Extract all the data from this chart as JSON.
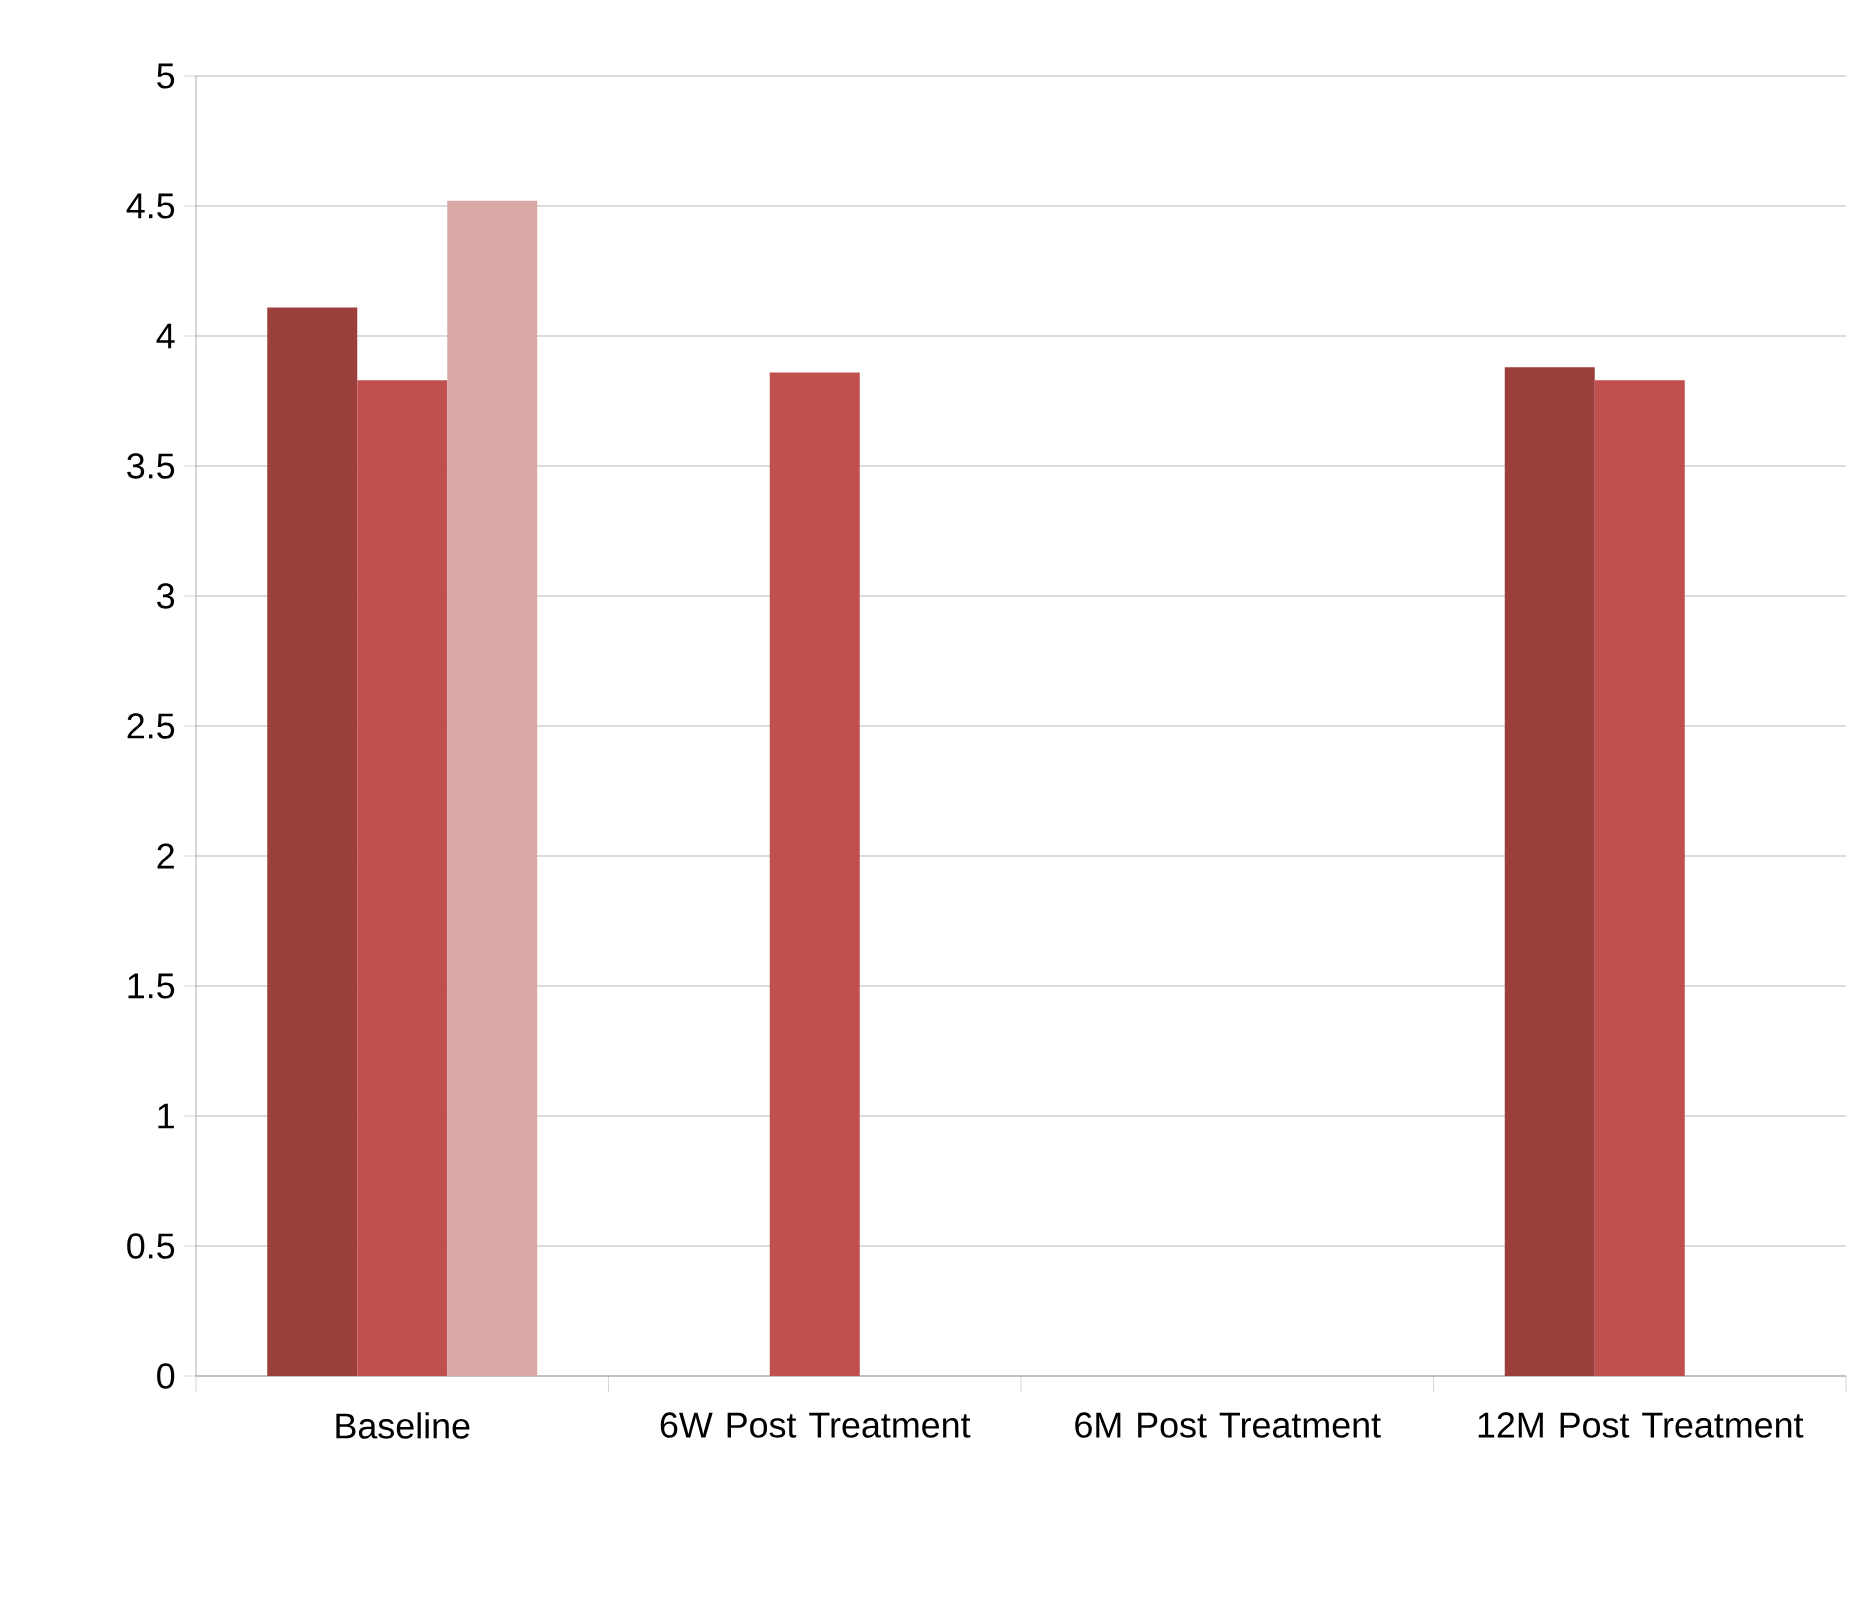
{
  "chart_data": {
    "type": "bar",
    "categories": [
      "Baseline",
      "6W Post Treatment",
      "6M Post Treatment",
      "12M Post Treatment"
    ],
    "series": [
      {
        "color": "#9b3f3d",
        "values": [
          4.11,
          null,
          null,
          3.88
        ]
      },
      {
        "color": "#c0504d",
        "values": [
          3.83,
          3.86,
          null,
          3.83
        ]
      },
      {
        "color": "#d9a8a7",
        "values": [
          4.52,
          null,
          null,
          null
        ]
      }
    ],
    "ylim": [
      0,
      5
    ],
    "yticks": [
      0,
      0.5,
      1,
      1.5,
      2,
      2.5,
      3,
      3.5,
      4,
      4.5,
      5
    ],
    "grid": "y"
  }
}
